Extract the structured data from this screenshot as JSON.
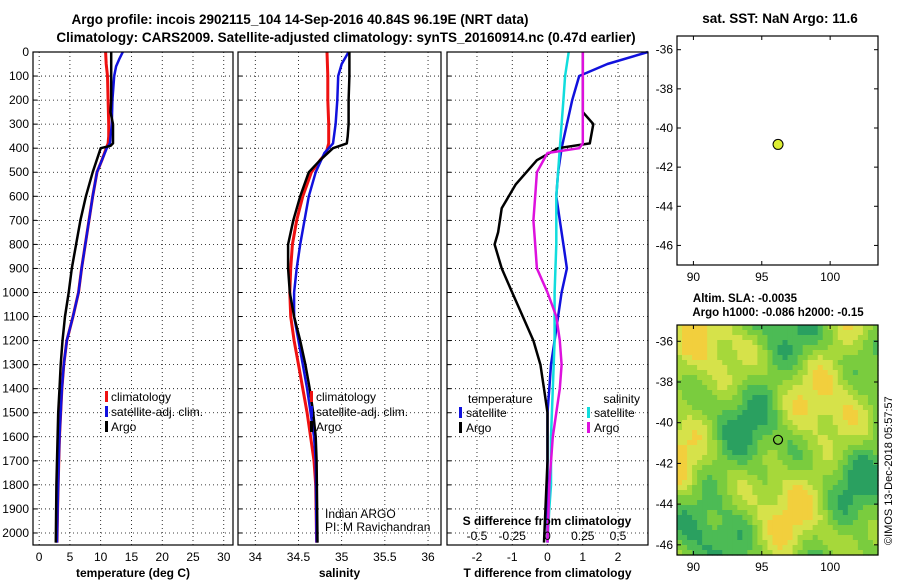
{
  "title_line1": "Argo profile: incois 2902115_104 14-Sep-2016 40.84S 96.19E (NRT data)",
  "title_line2": "Climatology: CARS2009. Satellite-adjusted climatology: synTS_20160914.nc (0.47d earlier)",
  "colors": {
    "climatology": "#ee1111",
    "satellite": "#1111dd",
    "argo": "#000000",
    "sat_salinity": "#11dddd",
    "argo_salinity_diff": "#dd11dd",
    "marker": "#ddee33"
  },
  "depth_axis": {
    "min": 0,
    "max": 2050,
    "ticks": [
      0,
      100,
      200,
      300,
      400,
      500,
      600,
      700,
      800,
      900,
      1000,
      1100,
      1200,
      1300,
      1400,
      1500,
      1600,
      1700,
      1800,
      1900,
      2000
    ]
  },
  "chart_data": [
    {
      "id": "temperature",
      "type": "line",
      "xlabel": "temperature (deg C)",
      "xlim": [
        -1,
        31.5
      ],
      "xticks": [
        0,
        5,
        10,
        15,
        20,
        25,
        30
      ],
      "xticklabels": [
        "0",
        "5",
        "10",
        "15",
        "20",
        "25",
        "30"
      ],
      "y_is_depth": true,
      "legend": {
        "position": "lower-right",
        "entries": [
          {
            "label": "climatology",
            "color_key": "climatology"
          },
          {
            "label": "satellite-adj. clim.",
            "color_key": "satellite"
          },
          {
            "label": "Argo",
            "color_key": "argo"
          }
        ]
      },
      "series": [
        {
          "name": "climatology",
          "color_key": "climatology",
          "width": 3,
          "x": [
            10.8,
            10.9,
            11.1,
            11.2,
            11.3,
            11.3,
            11.2,
            10.9,
            10.2,
            9.4,
            8.7,
            8.1,
            7.5,
            6.9,
            6.4,
            5.5,
            4.5,
            4.0,
            3.7,
            3.5,
            3.3,
            3.2,
            3.1,
            3.0,
            2.9
          ],
          "y": [
            0,
            50,
            100,
            200,
            300,
            350,
            380,
            400,
            450,
            500,
            600,
            700,
            800,
            900,
            1000,
            1100,
            1200,
            1300,
            1400,
            1500,
            1600,
            1700,
            1800,
            1900,
            2040
          ]
        },
        {
          "name": "satellite-adj. clim.",
          "color_key": "satellite",
          "width": 2.5,
          "x": [
            13.6,
            13.0,
            12.5,
            12.2,
            11.9,
            11.8,
            11.5,
            11.0,
            10.2,
            9.4,
            8.7,
            8.1,
            7.5,
            6.9,
            6.4,
            5.5,
            4.5,
            4.0,
            3.7,
            3.5,
            3.3,
            3.2,
            3.1,
            3.0,
            2.9
          ],
          "y": [
            0,
            30,
            60,
            100,
            200,
            300,
            380,
            400,
            450,
            500,
            600,
            700,
            800,
            900,
            1000,
            1100,
            1200,
            1300,
            1400,
            1500,
            1600,
            1700,
            1800,
            1900,
            2040
          ]
        },
        {
          "name": "Argo",
          "color_key": "argo",
          "width": 2.5,
          "x": [
            11.7,
            11.7,
            11.7,
            11.6,
            12.0,
            12.0,
            11.6,
            10.0,
            8.7,
            7.6,
            6.7,
            6.0,
            5.3,
            4.8,
            4.2,
            3.8,
            3.5,
            3.3,
            3.1,
            3.0,
            2.9,
            2.8,
            2.7
          ],
          "y": [
            0,
            100,
            200,
            250,
            300,
            380,
            390,
            400,
            500,
            600,
            700,
            800,
            900,
            1000,
            1100,
            1200,
            1300,
            1400,
            1500,
            1600,
            1700,
            1800,
            2040
          ]
        }
      ]
    },
    {
      "id": "salinity",
      "type": "line",
      "xlabel": "salinity",
      "xlim": [
        33.8,
        36.15
      ],
      "xticks": [
        34,
        34.5,
        35,
        35.5,
        36
      ],
      "xticklabels": [
        "34",
        "34.5",
        "35",
        "35.5",
        "36"
      ],
      "y_is_depth": true,
      "legend": {
        "position": "lower-right",
        "entries": [
          {
            "label": "climatology",
            "color_key": "climatology"
          },
          {
            "label": "satellite-adj. clim.",
            "color_key": "satellite"
          },
          {
            "label": "Argo",
            "color_key": "argo"
          }
        ]
      },
      "annotation": {
        "line1": "Indian ARGO",
        "line2": "PI: M Ravichandran"
      },
      "series": [
        {
          "name": "climatology",
          "color_key": "climatology",
          "width": 3,
          "x": [
            34.83,
            34.84,
            34.84,
            34.85,
            34.85,
            34.82,
            34.75,
            34.65,
            34.55,
            34.48,
            34.43,
            34.41,
            34.4,
            34.41,
            34.45,
            34.5,
            34.55,
            34.6,
            34.64,
            34.68,
            34.7,
            34.71
          ],
          "y": [
            0,
            100,
            200,
            300,
            380,
            420,
            450,
            500,
            600,
            700,
            800,
            900,
            1000,
            1100,
            1200,
            1300,
            1400,
            1500,
            1600,
            1700,
            1800,
            2040
          ]
        },
        {
          "name": "satellite-adj. clim.",
          "color_key": "satellite",
          "width": 2.5,
          "x": [
            35.08,
            35.0,
            34.96,
            34.95,
            34.93,
            34.9,
            34.8,
            34.7,
            34.62,
            34.57,
            34.52,
            34.48,
            34.45,
            34.45,
            34.5,
            34.55,
            34.6,
            34.64,
            34.68,
            34.7,
            34.71
          ],
          "y": [
            0,
            50,
            100,
            200,
            300,
            380,
            420,
            500,
            600,
            700,
            800,
            900,
            1000,
            1100,
            1200,
            1300,
            1400,
            1500,
            1600,
            1700,
            2040
          ]
        },
        {
          "name": "Argo",
          "color_key": "argo",
          "width": 2.5,
          "x": [
            35.09,
            35.09,
            35.08,
            35.08,
            35.07,
            35.06,
            34.9,
            34.75,
            34.62,
            34.52,
            34.44,
            34.38,
            34.38,
            34.4,
            34.45,
            34.52,
            34.58,
            34.63,
            34.67,
            34.7,
            34.71,
            34.72
          ],
          "y": [
            0,
            100,
            200,
            300,
            350,
            380,
            400,
            450,
            500,
            600,
            700,
            800,
            900,
            1000,
            1100,
            1200,
            1300,
            1400,
            1500,
            1600,
            1700,
            2040
          ]
        }
      ]
    },
    {
      "id": "difference",
      "type": "line",
      "xlabel": "T difference from climatology",
      "xlim": [
        -2.85,
        2.85
      ],
      "xticks": [
        -2,
        -1,
        0,
        1,
        2
      ],
      "xticklabels": [
        "-2",
        "-1",
        "0",
        "1",
        "2"
      ],
      "s_axis_label": "S difference from climatology",
      "s_ticks": [
        -0.5,
        -0.25,
        0,
        0.25,
        0.5
      ],
      "s_ticklabels": [
        "-0.5",
        "-0.25",
        "0",
        "0.25",
        "0.5"
      ],
      "s_per_t_unit": 0.25,
      "y_is_depth": true,
      "legend_temperature": {
        "heading": "temperature",
        "entries": [
          {
            "label": "satellite",
            "color_key": "satellite"
          },
          {
            "label": "Argo",
            "color_key": "argo"
          }
        ]
      },
      "legend_salinity": {
        "heading": "salinity",
        "entries": [
          {
            "label": "satellite",
            "color_key": "sat_salinity"
          },
          {
            "label": "Argo",
            "color_key": "argo_salinity_diff"
          }
        ]
      },
      "series": [
        {
          "name": "temperature satellite",
          "color_key": "satellite",
          "width": 2.5,
          "x": [
            2.85,
            1.7,
            0.9,
            0.7,
            0.55,
            0.4,
            0.3,
            0.25,
            0.35,
            0.45,
            0.55,
            0.4,
            0.3,
            0.2,
            0.1,
            0.05,
            0.0,
            0.0,
            0.0,
            0.0
          ],
          "y": [
            0,
            50,
            100,
            200,
            300,
            400,
            500,
            600,
            700,
            800,
            900,
            1000,
            1100,
            1200,
            1300,
            1400,
            1500,
            1600,
            1800,
            2040
          ]
        },
        {
          "name": "temperature Argo",
          "color_key": "argo",
          "width": 2.5,
          "x": [
            1.0,
            1.0,
            1.0,
            1.0,
            1.3,
            1.2,
            0.3,
            -0.3,
            -0.9,
            -1.3,
            -1.4,
            -1.5,
            -1.3,
            -1.0,
            -0.7,
            -0.4,
            -0.2,
            -0.1,
            0.0,
            0.0,
            -0.1
          ],
          "y": [
            0,
            100,
            200,
            250,
            300,
            380,
            400,
            450,
            550,
            650,
            750,
            800,
            900,
            1000,
            1100,
            1200,
            1300,
            1400,
            1500,
            1700,
            2040
          ]
        },
        {
          "name": "salinity satellite",
          "color_key": "sat_salinity",
          "width": 2.5,
          "x": [
            0.6,
            0.55,
            0.5,
            0.45,
            0.4,
            0.35,
            0.3,
            0.25,
            0.25,
            0.25,
            0.2,
            0.2,
            0.15,
            0.1,
            0.1,
            0.05,
            0.0
          ],
          "y": [
            0,
            50,
            100,
            200,
            300,
            400,
            500,
            600,
            700,
            800,
            1000,
            1200,
            1400,
            1600,
            1800,
            1900,
            2040
          ]
        },
        {
          "name": "salinity Argo",
          "color_key": "argo_salinity_diff",
          "width": 2.5,
          "x": [
            1.0,
            1.0,
            1.0,
            1.0,
            1.0,
            0.9,
            0.0,
            -0.3,
            -0.35,
            -0.4,
            -0.35,
            -0.3,
            0.0,
            0.25,
            0.35,
            0.4,
            0.35,
            0.25,
            0.15,
            0.05,
            0.0
          ],
          "y": [
            0,
            100,
            200,
            300,
            380,
            400,
            420,
            500,
            600,
            700,
            800,
            900,
            1000,
            1100,
            1200,
            1300,
            1400,
            1500,
            1600,
            1800,
            2040
          ]
        }
      ]
    },
    {
      "id": "sst-map",
      "type": "scatter",
      "title": "sat. SST: NaN Argo: 11.6",
      "xlim": [
        88.8,
        103.5
      ],
      "ylim": [
        -47,
        -35.3
      ],
      "xticks": [
        90,
        95,
        100
      ],
      "xticklabels": [
        "90",
        "95",
        "100"
      ],
      "yticks": [
        -36,
        -38,
        -40,
        -42,
        -44,
        -46
      ],
      "yticklabels": [
        "-36",
        "-38",
        "-40",
        "-42",
        "-44",
        "-46"
      ],
      "points": [
        {
          "lon": 96.19,
          "lat": -40.84,
          "color_key": "marker"
        }
      ]
    },
    {
      "id": "sla-map",
      "type": "heatmap",
      "title_line1": "Altim. SLA: -0.0035",
      "title_line2": "Argo h1000: -0.086 h2000: -0.15",
      "xlim": [
        88.8,
        103.5
      ],
      "ylim": [
        -46.5,
        -35.2
      ],
      "xticks": [
        90,
        95,
        100
      ],
      "xticklabels": [
        "90",
        "95",
        "100"
      ],
      "yticks": [
        -36,
        -38,
        -40,
        -42,
        -44,
        -46
      ],
      "yticklabels": [
        "-36",
        "-38",
        "-40",
        "-42",
        "-44",
        "-46"
      ],
      "points": [
        {
          "lon": 96.19,
          "lat": -40.84
        }
      ],
      "colors": [
        "#2aa060",
        "#4cbb55",
        "#7acc3e",
        "#a6d83a",
        "#d6e24a",
        "#f2cf3d"
      ]
    }
  ],
  "credit": "©IMOS 13-Dec-2018 05:57:57"
}
